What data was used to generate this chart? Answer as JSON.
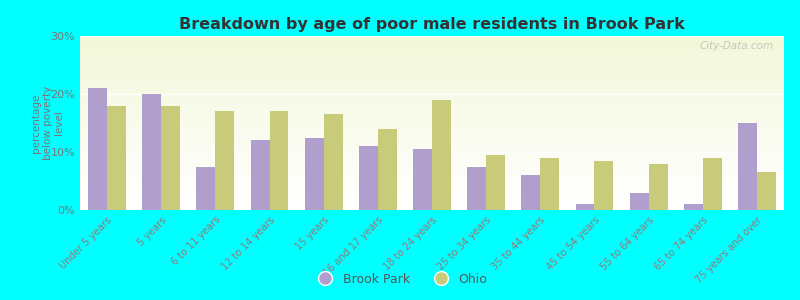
{
  "title": "Breakdown by age of poor male residents in Brook Park",
  "ylabel": "percentage\nbelow poverty\nlevel",
  "categories": [
    "Under 5 years",
    "5 years",
    "6 to 11 years",
    "12 to 14 years",
    "15 years",
    "16 and 17 years",
    "18 to 24 years",
    "25 to 34 years",
    "35 to 44 years",
    "45 to 54 years",
    "55 to 64 years",
    "65 to 74 years",
    "75 years and over"
  ],
  "brook_park": [
    21,
    20,
    7.5,
    12,
    12.5,
    11,
    10.5,
    7.5,
    6,
    1,
    3,
    1,
    15
  ],
  "ohio": [
    18,
    18,
    17,
    17,
    16.5,
    14,
    19,
    9.5,
    9,
    8.5,
    8,
    9,
    6.5
  ],
  "brook_park_color": "#b09fcc",
  "ohio_color": "#c8cc7a",
  "background_color": "#00ffff",
  "ylim": [
    0,
    30
  ],
  "yticks": [
    0,
    10,
    20,
    30
  ],
  "ytick_labels": [
    "0%",
    "10%",
    "20%",
    "30%"
  ],
  "bar_width": 0.35,
  "watermark": "City-Data.com"
}
